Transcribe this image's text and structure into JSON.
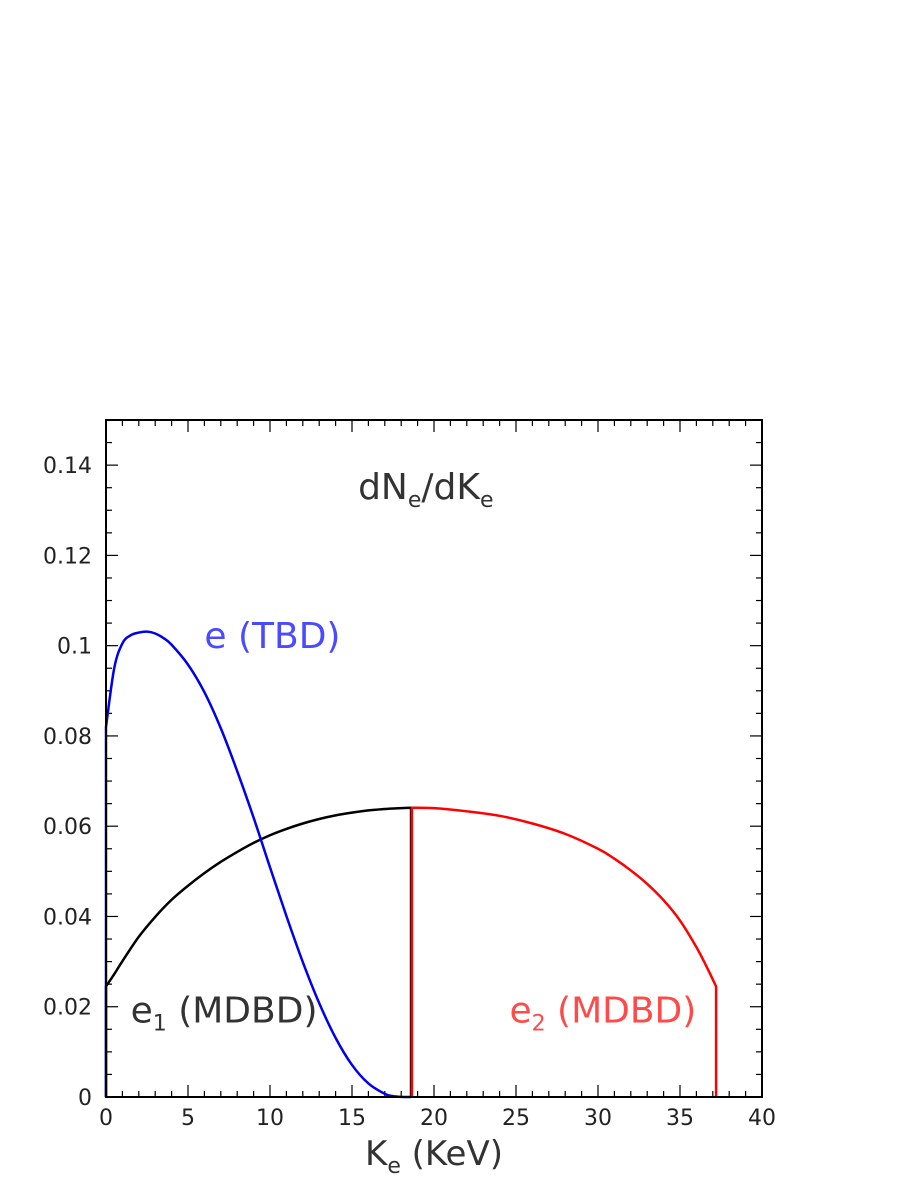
{
  "chart_data": {
    "type": "line",
    "title": "",
    "xlabel": {
      "main": "K",
      "sub": "e",
      "rest": " (KeV)"
    },
    "ylabel": "",
    "xlim": [
      0,
      40
    ],
    "ylim": [
      0,
      0.15
    ],
    "x_ticks": [
      "0",
      "5",
      "10",
      "15",
      "20",
      "25",
      "30",
      "35",
      "40"
    ],
    "y_ticks": [
      "0",
      "0.02",
      "0.04",
      "0.06",
      "0.08",
      "0.1",
      "0.12",
      "0.14"
    ],
    "grid": false,
    "series": [
      {
        "name": "e (TBD)",
        "color": "#0000ee",
        "x": [
          0,
          0,
          0.5,
          1,
          1.5,
          2,
          2.5,
          3,
          3.5,
          4,
          5,
          6,
          7,
          8,
          9,
          10,
          11,
          12,
          13,
          14,
          15,
          16,
          17,
          17.5,
          18,
          18.6
        ],
        "y": [
          0,
          0.082,
          0.095,
          0.1005,
          0.1023,
          0.1029,
          0.1031,
          0.1027,
          0.1017,
          0.1002,
          0.0958,
          0.0897,
          0.0817,
          0.0722,
          0.0619,
          0.0509,
          0.0401,
          0.0299,
          0.0208,
          0.0131,
          0.0071,
          0.003,
          0.0007,
          0.0002,
          3e-05,
          0
        ]
      },
      {
        "name": "e1 (MDBD)",
        "color": "#000000",
        "x": [
          0,
          0,
          0.5,
          1,
          2,
          3,
          4,
          5,
          6,
          7,
          8,
          9,
          10,
          11,
          12,
          13,
          14,
          15,
          16,
          17,
          18,
          18.6,
          18.6
        ],
        "y": [
          0,
          0.0245,
          0.0272,
          0.0301,
          0.0355,
          0.0399,
          0.0437,
          0.0468,
          0.0496,
          0.0521,
          0.0543,
          0.0563,
          0.058,
          0.0594,
          0.0606,
          0.0616,
          0.0624,
          0.063,
          0.0635,
          0.0638,
          0.064,
          0.0641,
          0
        ]
      },
      {
        "name": "e2 (MDBD)",
        "color": "#ff0000",
        "x": [
          18.65,
          18.65,
          20,
          22,
          24,
          26,
          28,
          30,
          31,
          32,
          33,
          34,
          35,
          36,
          36.7,
          37.2,
          37.2
        ],
        "y": [
          0,
          0.0641,
          0.064,
          0.0633,
          0.0623,
          0.0606,
          0.0583,
          0.055,
          0.0528,
          0.0502,
          0.0472,
          0.0436,
          0.0391,
          0.0332,
          0.0283,
          0.0245,
          0
        ]
      }
    ],
    "annotations": {
      "title_inner": {
        "main": "dN",
        "sub1": "e",
        "mid": "/dK",
        "sub2": "e"
      },
      "tbd": {
        "text": "e (TBD)",
        "color": "#4a4aff"
      },
      "e1": {
        "main": "e",
        "sub": "1",
        "rest": " (MDBD)",
        "color": "#333333"
      },
      "e2": {
        "main": "e",
        "sub": "2",
        "rest": " (MDBD)",
        "color": "#ff4a4a"
      }
    }
  }
}
